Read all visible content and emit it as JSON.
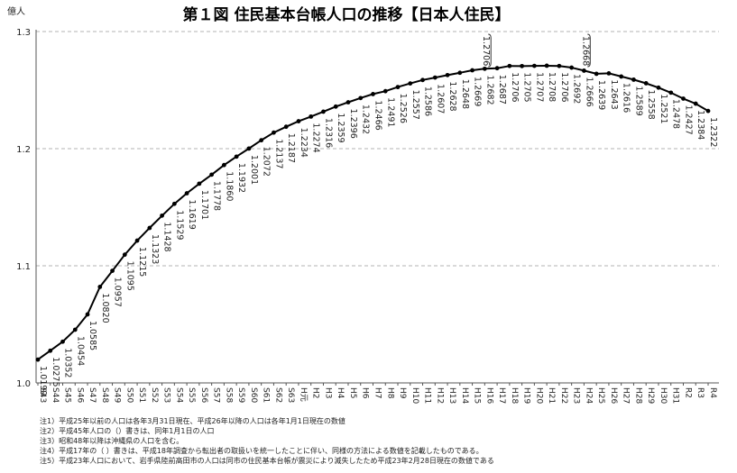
{
  "chart_data": {
    "type": "line",
    "title": "第１図  住民基本台帳人口の推移【日本人住民】",
    "ylabel": "億人",
    "xlabel": "",
    "ylim": [
      1.0,
      1.3
    ],
    "yticks": [
      "1.0",
      "1.1",
      "1.2",
      "1.3"
    ],
    "grid": true,
    "legend": "none",
    "line_color": "#000000",
    "grid_color": "#b3b3b3",
    "x": [
      "S43",
      "S44",
      "S45",
      "S46",
      "S47",
      "S48",
      "S49",
      "S50",
      "S51",
      "S52",
      "S53",
      "S54",
      "S55",
      "S56",
      "S57",
      "S58",
      "S59",
      "S60",
      "S61",
      "S62",
      "S63",
      "H元",
      "H2",
      "H3",
      "H4",
      "H5",
      "H6",
      "H7",
      "H8",
      "H9",
      "H10",
      "H11",
      "H12",
      "H13",
      "H14",
      "H15",
      "H16",
      "H17",
      "H18",
      "H19",
      "H20",
      "H21",
      "H22",
      "H23",
      "H24",
      "H25",
      "H26",
      "H27",
      "H28",
      "H29",
      "H30",
      "H31",
      "R2",
      "R3",
      "R4"
    ],
    "values": [
      1.0199,
      1.0275,
      1.0352,
      1.0454,
      1.0585,
      1.082,
      1.0957,
      1.1095,
      1.1215,
      1.1323,
      1.1428,
      1.1529,
      1.1619,
      1.1701,
      1.1778,
      1.186,
      1.1932,
      1.2001,
      1.2072,
      1.2137,
      1.2187,
      1.2234,
      1.2274,
      1.2316,
      1.2359,
      1.2396,
      1.2432,
      1.2466,
      1.2491,
      1.2526,
      1.2557,
      1.2586,
      1.2607,
      1.2628,
      1.2648,
      1.2669,
      1.2682,
      1.2687,
      1.2706,
      1.2705,
      1.2707,
      1.2708,
      1.2706,
      1.2692,
      1.2666,
      1.2639,
      1.2643,
      1.2616,
      1.2589,
      1.2558,
      1.2521,
      1.2478,
      1.2427,
      1.2384,
      1.2322
    ],
    "labels": [
      "1.0199",
      "1.0275",
      "1.0352",
      "1.0454",
      "1.0585",
      "1.0820",
      "1.0957",
      "1.1095",
      "1.1215",
      "1.1323",
      "1.1428",
      "1.1529",
      "1.1619",
      "1.1701",
      "1.1778",
      "1.1860",
      "1.1932",
      "1.2001",
      "1.2072",
      "1.2137",
      "1.2187",
      "1.2234",
      "1.2274",
      "1.2316",
      "1.2359",
      "1.2396",
      "1.2432",
      "1.2466",
      "1.2491",
      "1.2526",
      "1.2557",
      "1.2586",
      "1.2607",
      "1.2628",
      "1.2648",
      "1.2669",
      "1.2682",
      "1.2687",
      "1.2706",
      "1.2705",
      "1.2707",
      "1.2708",
      "1.2706",
      "1.2692",
      "1.2666",
      "1.2639",
      "1.2643",
      "1.2616",
      "1.2589",
      "1.2558",
      "1.2521",
      "1.2478",
      "1.2427",
      "1.2384",
      "1.2322"
    ],
    "bracket_labels": [
      {
        "after_index": 36,
        "text": "1.2706"
      },
      {
        "after_index": 44,
        "text": "1.2668"
      }
    ]
  },
  "notes": [
    "注1）平成25年以前の人口は各年3月31日現在、平成26年以降の人口は各年1月1日現在の数値",
    "注2）平成45年人口の（）書きは、同年1月1日の人口",
    "注3）昭和48年以降は沖縄県の人口を含む。",
    "注4）平成17年の（ ）書きは、平成18年調査から転出者の取扱いを統一したことに伴い、同様の方法による数値を記載したものである。",
    "注5）平成23年人口において、岩手県陸前高田市の人口は同市の住民基本台帳が震災により滅失したため平成23年2月28日現在の数値である"
  ]
}
